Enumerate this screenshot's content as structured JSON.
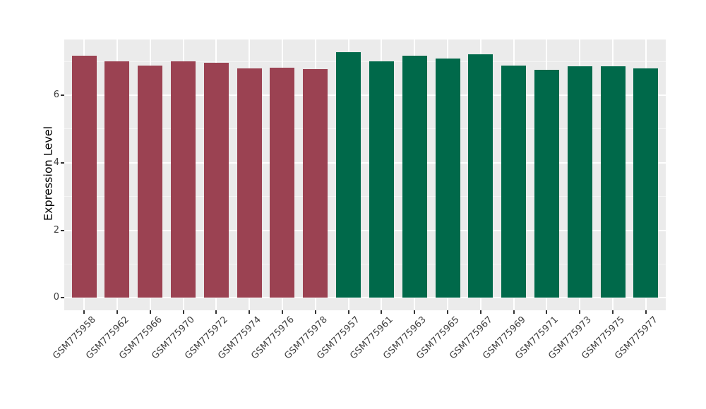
{
  "chart_data": {
    "type": "bar",
    "title": "",
    "xlabel": "",
    "ylabel": "Expression Level",
    "categories": [
      "GSM775958",
      "GSM775962",
      "GSM775966",
      "GSM775970",
      "GSM775972",
      "GSM775974",
      "GSM775976",
      "GSM775978",
      "GSM775957",
      "GSM775961",
      "GSM775963",
      "GSM775965",
      "GSM775967",
      "GSM775969",
      "GSM775971",
      "GSM775973",
      "GSM775975",
      "GSM775977"
    ],
    "values": [
      7.18,
      7.01,
      6.88,
      7.01,
      6.97,
      6.8,
      6.82,
      6.78,
      7.28,
      7.01,
      7.17,
      7.08,
      7.22,
      6.88,
      6.76,
      6.86,
      6.86,
      6.79
    ],
    "groups": [
      "group1",
      "group1",
      "group1",
      "group1",
      "group1",
      "group1",
      "group1",
      "group1",
      "group2",
      "group2",
      "group2",
      "group2",
      "group2",
      "group2",
      "group2",
      "group2",
      "group2",
      "group2"
    ],
    "group_colors": {
      "group1": "#9B4252",
      "group2": "#00694A"
    },
    "ylim": [
      -0.37,
      7.65
    ],
    "yticks": [
      0,
      2,
      4,
      6
    ],
    "yticks_minor": [
      1,
      3,
      5,
      7
    ],
    "grid": true,
    "legend": "none",
    "x_label_angle": 45,
    "panel_background": "#EBEBEB",
    "grid_major_color": "#FFFFFF",
    "grid_minor_color": "#F6F6F6",
    "axis_text_color": "#404040",
    "axis_title_color": "#000000"
  }
}
